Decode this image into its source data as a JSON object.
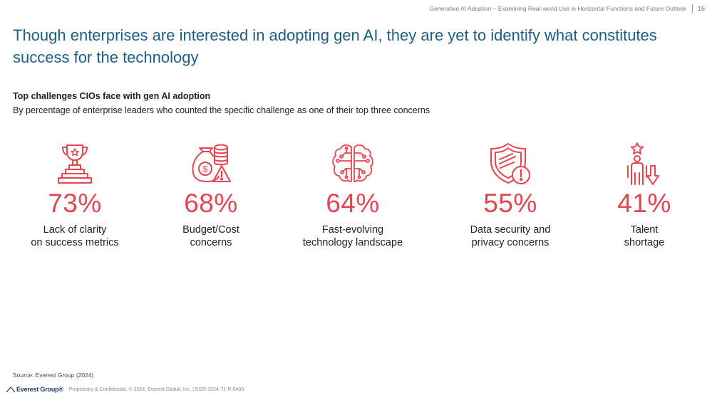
{
  "header": {
    "doc_title": "Generative AI Adoption – Examining Real-world Use in Horizontal Functions and Future Outlook",
    "page_number": "16"
  },
  "title": "Though enterprises are interested in adopting gen AI, they are yet to identify what constitutes success for the technology",
  "subtitle": "Top challenges CIOs face with gen AI adoption",
  "description": "By percentage of enterprise leaders who counted the specific challenge as one of their top three concerns",
  "accent_color": "#e8434f",
  "title_color": "#1c5d8a",
  "stats": [
    {
      "icon": "trophy-icon",
      "value": "73%",
      "label_line1": "Lack of clarity",
      "label_line2": "on success metrics"
    },
    {
      "icon": "money-bag-coins-icon",
      "value": "68%",
      "label_line1": "Budget/Cost",
      "label_line2": "concerns"
    },
    {
      "icon": "ai-brain-circuit-icon",
      "value": "64%",
      "label_line1": "Fast-evolving",
      "label_line2": "technology landscape"
    },
    {
      "icon": "shield-alert-icon",
      "value": "55%",
      "label_line1": "Data security and",
      "label_line2": "privacy concerns"
    },
    {
      "icon": "person-star-down-arrow-icon",
      "value": "41%",
      "label_line1": "Talent",
      "label_line2": "shortage"
    }
  ],
  "source": "Source: Everest Group (2024)",
  "footer": {
    "logo_text": "Everest Group®",
    "text": "Proprietary & Confidential. © 2024, Everest Global, Inc. | EGR-2024-71-R-6495"
  }
}
